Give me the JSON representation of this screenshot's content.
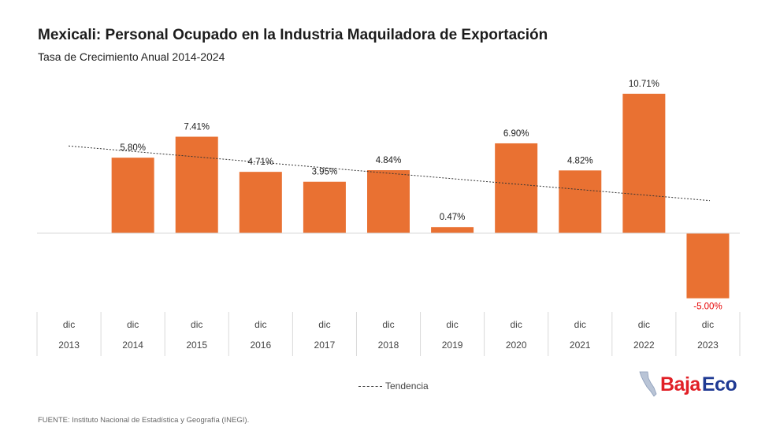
{
  "header": {
    "title": "Mexicali: Personal Ocupado en la Industria Maquiladora de Exportación",
    "subtitle": "Tasa de Crecimiento Anual  2014-2024"
  },
  "legend": {
    "trend_label": "Tendencia"
  },
  "footer": {
    "source": "FUENTE: Instituto Nacional de Estadística y Geografía (INEGI)."
  },
  "logo": {
    "part1": "Baja",
    "part2": "Eco",
    "icon": "baja-california-map-icon"
  },
  "colors": {
    "bar": "#e97132",
    "negative_label": "#e60000",
    "axis": "#d9d9d9",
    "trend": "#333333"
  },
  "chart_data": {
    "type": "bar",
    "categories": [
      "2013",
      "2014",
      "2015",
      "2016",
      "2017",
      "2018",
      "2019",
      "2020",
      "2021",
      "2022",
      "2023"
    ],
    "category_month": "dic",
    "values": [
      null,
      5.8,
      7.41,
      4.71,
      3.95,
      4.84,
      0.47,
      6.9,
      4.82,
      10.71,
      -5.0
    ],
    "labels": [
      "",
      "5.80%",
      "7.41%",
      "4.71%",
      "3.95%",
      "4.84%",
      "0.47%",
      "6.90%",
      "4.82%",
      "10.71%",
      "-5.00%"
    ],
    "trendline": {
      "type": "linear",
      "name": "Tendencia",
      "start": 6.7,
      "end": 2.5
    },
    "title": "Mexicali: Personal Ocupado en la Industria Maquiladora de Exportación",
    "subtitle": "Tasa de Crecimiento Anual  2014-2024",
    "xlabel": "",
    "ylabel": "",
    "ylim": [
      -6,
      11
    ],
    "legend_position": "bottom",
    "grid": false
  }
}
